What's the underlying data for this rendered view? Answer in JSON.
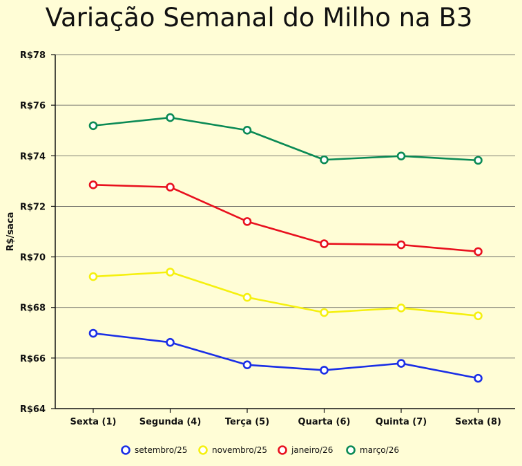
{
  "chart_data": {
    "type": "line",
    "title": "Variação Semanal do Milho na B3",
    "xlabel": "",
    "ylabel": "R$/saca",
    "categories": [
      "Sexta (1)",
      "Segunda (4)",
      "Terça (5)",
      "Quarta (6)",
      "Quinta (7)",
      "Sexta (8)"
    ],
    "ylim": [
      64,
      78
    ],
    "yticks": [
      64,
      66,
      68,
      70,
      72,
      74,
      76,
      78
    ],
    "ytick_labels": [
      "R$64",
      "R$66",
      "R$68",
      "R$70",
      "R$72",
      "R$74",
      "R$76",
      "R$78"
    ],
    "grid": true,
    "legend_position": "bottom",
    "series": [
      {
        "name": "setembro/25",
        "color": "#1a2ee6",
        "values": [
          66.98,
          66.62,
          65.73,
          65.52,
          65.79,
          65.2
        ]
      },
      {
        "name": "novembro/25",
        "color": "#f5f00f",
        "values": [
          69.22,
          69.4,
          68.4,
          67.8,
          67.98,
          67.67
        ]
      },
      {
        "name": "janeiro/26",
        "color": "#e8101e",
        "values": [
          72.85,
          72.76,
          71.4,
          70.52,
          70.48,
          70.21
        ]
      },
      {
        "name": "março/26",
        "color": "#0a8a55",
        "values": [
          75.19,
          75.51,
          75.01,
          73.84,
          73.99,
          73.82
        ]
      }
    ]
  }
}
